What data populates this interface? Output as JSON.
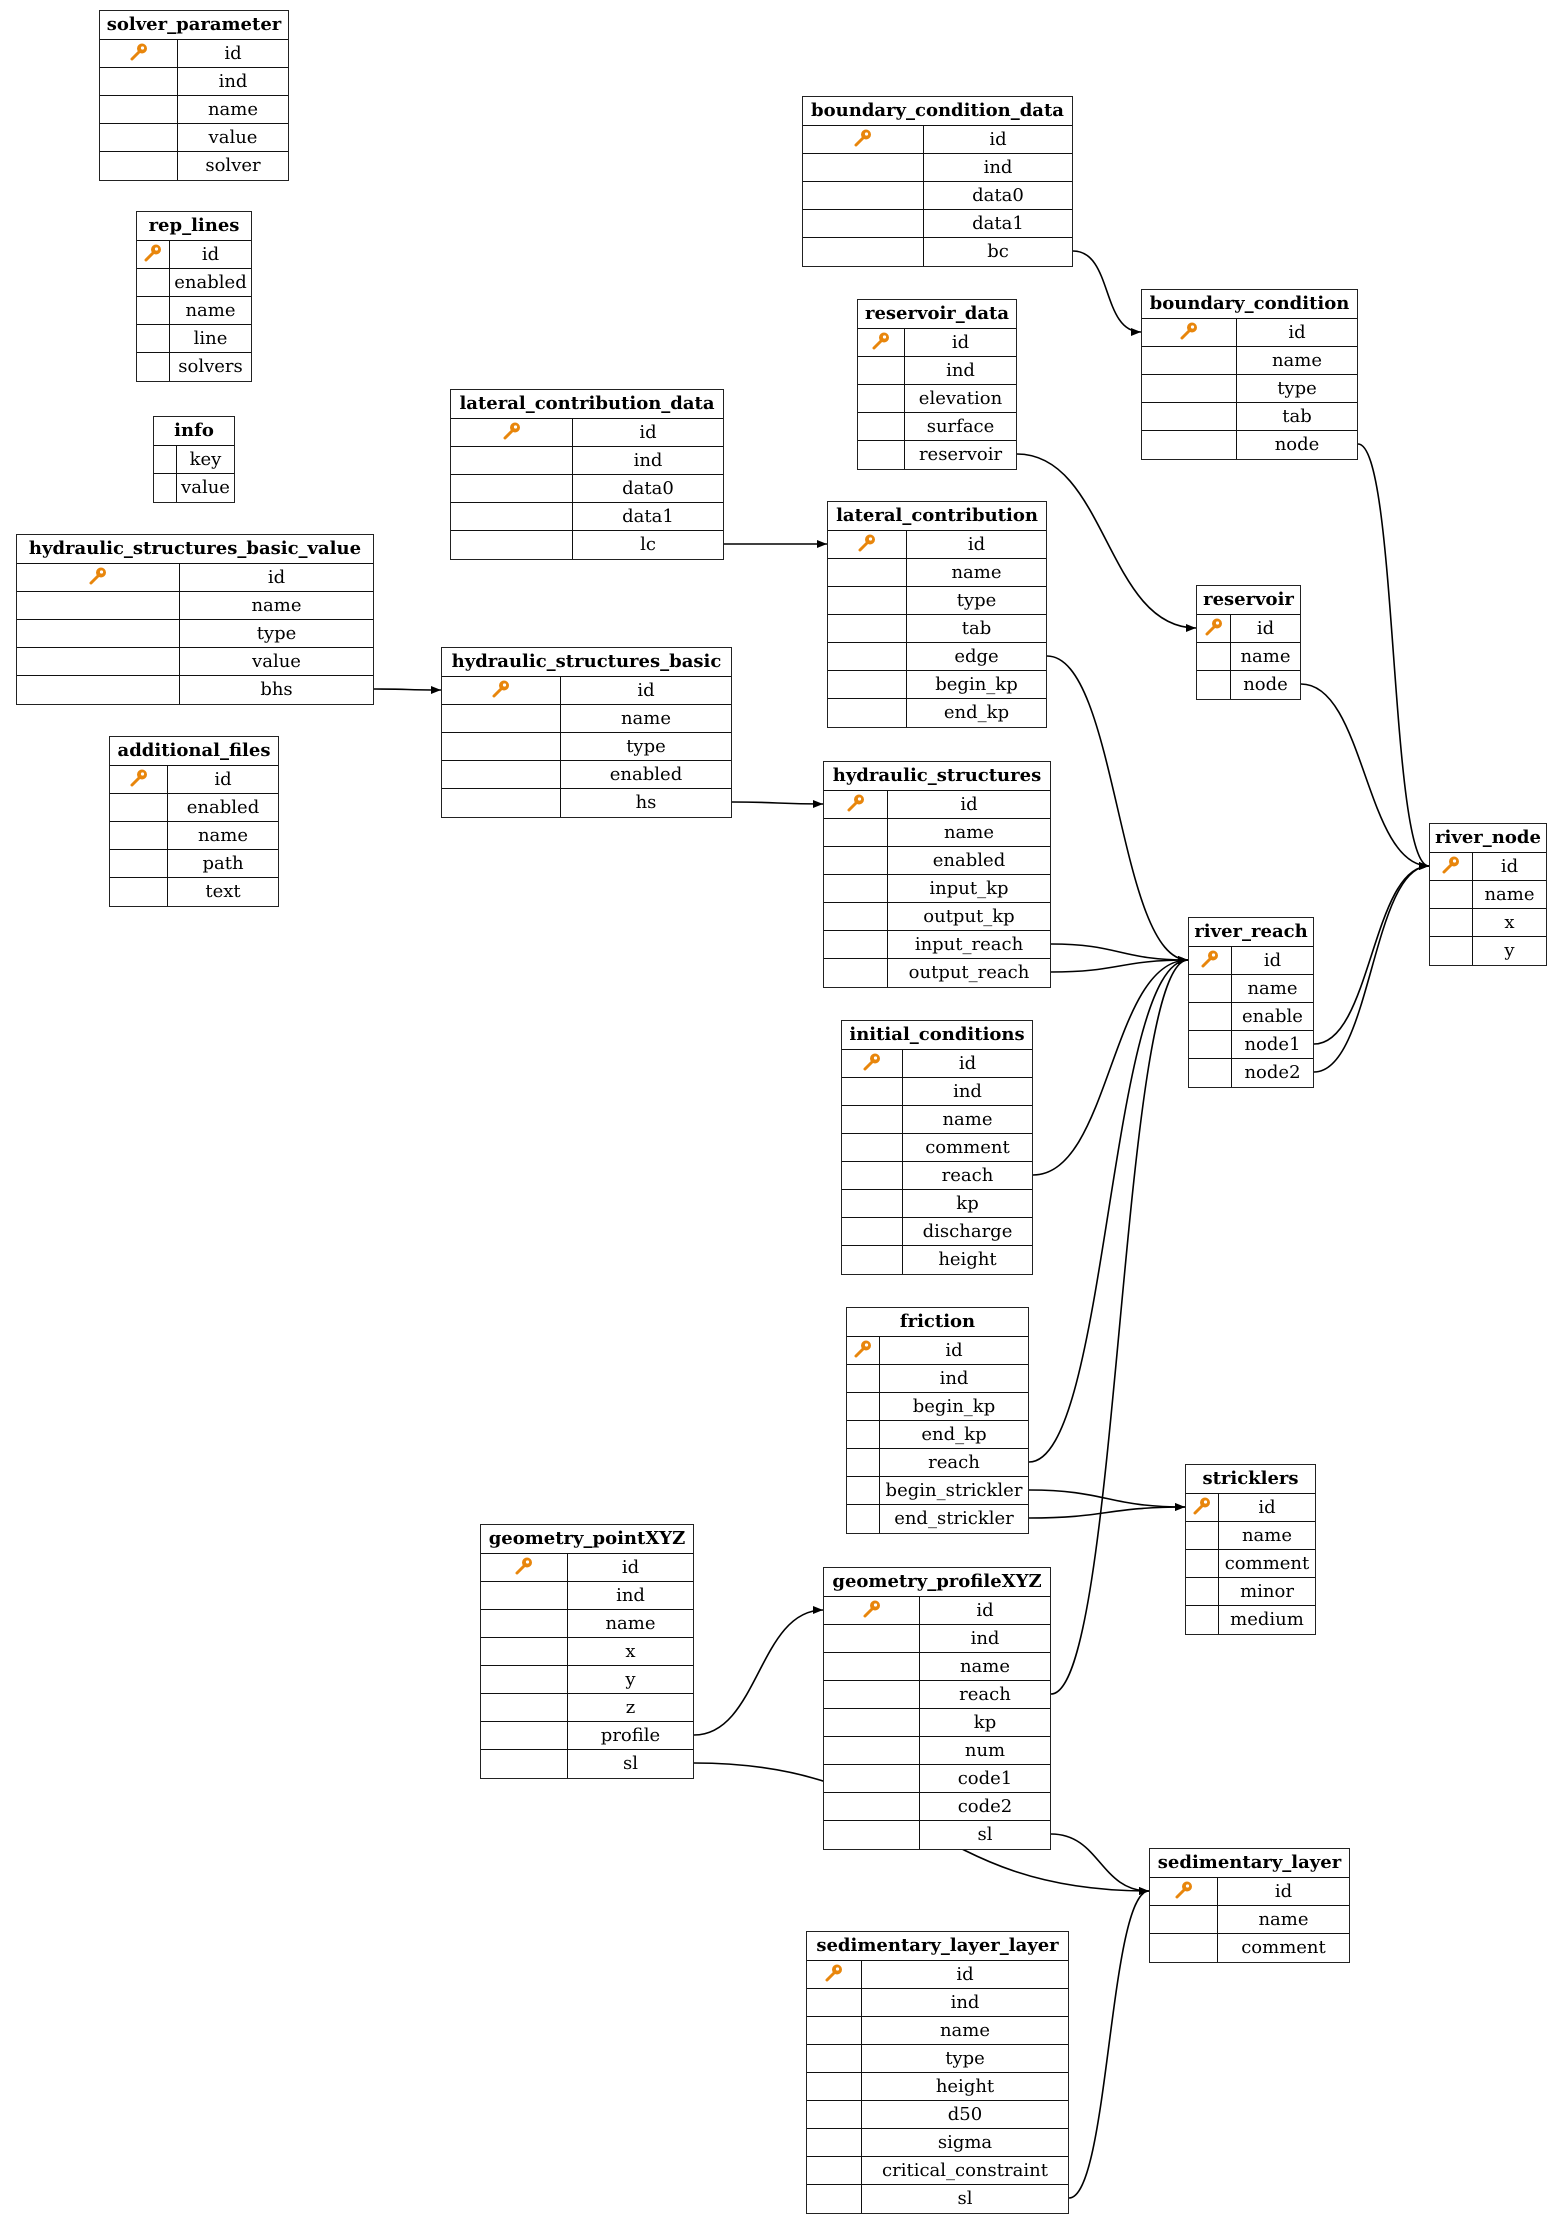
{
  "key_icon": "key-icon",
  "key_color": "#e8860c",
  "tables": [
    {
      "name": "solver_parameter",
      "pk": "id",
      "fields": [
        "id",
        "ind",
        "name",
        "value",
        "solver"
      ]
    },
    {
      "name": "rep_lines",
      "pk": "id",
      "fields": [
        "id",
        "enabled",
        "name",
        "line",
        "solvers"
      ]
    },
    {
      "name": "info",
      "pk": null,
      "fields": [
        "key",
        "value"
      ]
    },
    {
      "name": "hydraulic_structures_basic_value",
      "pk": "id",
      "fields": [
        "id",
        "name",
        "type",
        "value",
        "bhs"
      ]
    },
    {
      "name": "additional_files",
      "pk": "id",
      "fields": [
        "id",
        "enabled",
        "name",
        "path",
        "text"
      ]
    },
    {
      "name": "boundary_condition_data",
      "pk": "id",
      "fields": [
        "id",
        "ind",
        "data0",
        "data1",
        "bc"
      ]
    },
    {
      "name": "reservoir_data",
      "pk": "id",
      "fields": [
        "id",
        "ind",
        "elevation",
        "surface",
        "reservoir"
      ]
    },
    {
      "name": "lateral_contribution_data",
      "pk": "id",
      "fields": [
        "id",
        "ind",
        "data0",
        "data1",
        "lc"
      ]
    },
    {
      "name": "boundary_condition",
      "pk": "id",
      "fields": [
        "id",
        "name",
        "type",
        "tab",
        "node"
      ]
    },
    {
      "name": "lateral_contribution",
      "pk": "id",
      "fields": [
        "id",
        "name",
        "type",
        "tab",
        "edge",
        "begin_kp",
        "end_kp"
      ]
    },
    {
      "name": "reservoir",
      "pk": "id",
      "fields": [
        "id",
        "name",
        "node"
      ]
    },
    {
      "name": "hydraulic_structures_basic",
      "pk": "id",
      "fields": [
        "id",
        "name",
        "type",
        "enabled",
        "hs"
      ]
    },
    {
      "name": "hydraulic_structures",
      "pk": "id",
      "fields": [
        "id",
        "name",
        "enabled",
        "input_kp",
        "output_kp",
        "input_reach",
        "output_reach"
      ]
    },
    {
      "name": "river_reach",
      "pk": "id",
      "fields": [
        "id",
        "name",
        "enable",
        "node1",
        "node2"
      ]
    },
    {
      "name": "river_node",
      "pk": "id",
      "fields": [
        "id",
        "name",
        "x",
        "y"
      ]
    },
    {
      "name": "initial_conditions",
      "pk": "id",
      "fields": [
        "id",
        "ind",
        "name",
        "comment",
        "reach",
        "kp",
        "discharge",
        "height"
      ]
    },
    {
      "name": "friction",
      "pk": "id",
      "fields": [
        "id",
        "ind",
        "begin_kp",
        "end_kp",
        "reach",
        "begin_strickler",
        "end_strickler"
      ]
    },
    {
      "name": "stricklers",
      "pk": "id",
      "fields": [
        "id",
        "name",
        "comment",
        "minor",
        "medium"
      ]
    },
    {
      "name": "geometry_pointXYZ",
      "pk": "id",
      "fields": [
        "id",
        "ind",
        "name",
        "x",
        "y",
        "z",
        "profile",
        "sl"
      ]
    },
    {
      "name": "geometry_profileXYZ",
      "pk": "id",
      "fields": [
        "id",
        "ind",
        "name",
        "reach",
        "kp",
        "num",
        "code1",
        "code2",
        "sl"
      ]
    },
    {
      "name": "sedimentary_layer",
      "pk": "id",
      "fields": [
        "id",
        "name",
        "comment"
      ]
    },
    {
      "name": "sedimentary_layer_layer",
      "pk": "id",
      "fields": [
        "id",
        "ind",
        "name",
        "type",
        "height",
        "d50",
        "sigma",
        "critical_constraint",
        "sl"
      ]
    }
  ],
  "relations": [
    {
      "from": "boundary_condition_data.bc",
      "to": "boundary_condition.id"
    },
    {
      "from": "reservoir_data.reservoir",
      "to": "reservoir.id"
    },
    {
      "from": "lateral_contribution_data.lc",
      "to": "lateral_contribution.id"
    },
    {
      "from": "hydraulic_structures_basic_value.bhs",
      "to": "hydraulic_structures_basic.id"
    },
    {
      "from": "hydraulic_structures_basic.hs",
      "to": "hydraulic_structures.id"
    },
    {
      "from": "boundary_condition.node",
      "to": "river_node.id"
    },
    {
      "from": "reservoir.node",
      "to": "river_node.id"
    },
    {
      "from": "river_reach.node1",
      "to": "river_node.id"
    },
    {
      "from": "river_reach.node2",
      "to": "river_node.id"
    },
    {
      "from": "lateral_contribution.edge",
      "to": "river_reach.id"
    },
    {
      "from": "hydraulic_structures.input_reach",
      "to": "river_reach.id"
    },
    {
      "from": "hydraulic_structures.output_reach",
      "to": "river_reach.id"
    },
    {
      "from": "initial_conditions.reach",
      "to": "river_reach.id"
    },
    {
      "from": "friction.reach",
      "to": "river_reach.id"
    },
    {
      "from": "friction.begin_strickler",
      "to": "stricklers.id"
    },
    {
      "from": "friction.end_strickler",
      "to": "stricklers.id"
    },
    {
      "from": "geometry_pointXYZ.profile",
      "to": "geometry_profileXYZ.id"
    },
    {
      "from": "geometry_pointXYZ.sl",
      "to": "sedimentary_layer.id"
    },
    {
      "from": "geometry_profileXYZ.reach",
      "to": "river_reach.id"
    },
    {
      "from": "geometry_profileXYZ.sl",
      "to": "sedimentary_layer.id"
    },
    {
      "from": "sedimentary_layer_layer.sl",
      "to": "sedimentary_layer.id"
    }
  ]
}
